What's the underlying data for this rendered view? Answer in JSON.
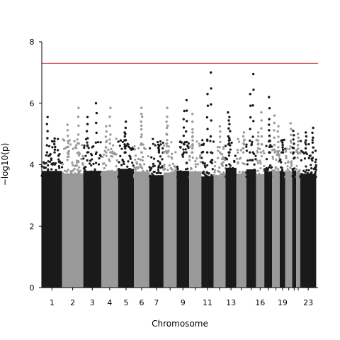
{
  "chart_data": {
    "type": "scatter",
    "subtype": "manhattan",
    "title": "",
    "xlabel": "Chromosome",
    "ylabel": "−log10(p)",
    "ylim": [
      0,
      8
    ],
    "y_ticks": [
      0,
      2,
      4,
      6,
      8
    ],
    "x_tick_labels": [
      "1",
      "2",
      "3",
      "4",
      "5",
      "6",
      "7",
      "9",
      "11",
      "13",
      "16",
      "19",
      "23"
    ],
    "chromosomes": [
      {
        "chr": "1",
        "start": 0.0,
        "end": 8.8,
        "color": "#1a1a1a"
      },
      {
        "chr": "2",
        "start": 8.8,
        "end": 18.0,
        "color": "#999999"
      },
      {
        "chr": "3",
        "start": 18.0,
        "end": 25.8,
        "color": "#1a1a1a"
      },
      {
        "chr": "4",
        "start": 25.8,
        "end": 33.1,
        "color": "#999999"
      },
      {
        "chr": "5",
        "start": 33.1,
        "end": 40.0,
        "color": "#1a1a1a"
      },
      {
        "chr": "6",
        "start": 40.0,
        "end": 46.6,
        "color": "#999999"
      },
      {
        "chr": "7",
        "start": 46.6,
        "end": 52.8,
        "color": "#1a1a1a"
      },
      {
        "chr": "8",
        "start": 52.8,
        "end": 58.5,
        "color": "#999999"
      },
      {
        "chr": "9",
        "start": 58.5,
        "end": 63.9,
        "color": "#1a1a1a"
      },
      {
        "chr": "10",
        "start": 63.9,
        "end": 69.2,
        "color": "#999999"
      },
      {
        "chr": "11",
        "start": 69.2,
        "end": 74.5,
        "color": "#1a1a1a"
      },
      {
        "chr": "12",
        "start": 74.5,
        "end": 79.7,
        "color": "#999999"
      },
      {
        "chr": "13",
        "start": 79.7,
        "end": 84.4,
        "color": "#1a1a1a"
      },
      {
        "chr": "14",
        "start": 84.4,
        "end": 88.7,
        "color": "#999999"
      },
      {
        "chr": "15",
        "start": 88.7,
        "end": 92.9,
        "color": "#1a1a1a"
      },
      {
        "chr": "16",
        "start": 92.9,
        "end": 96.5,
        "color": "#999999"
      },
      {
        "chr": "17",
        "start": 96.5,
        "end": 99.9,
        "color": "#1a1a1a"
      },
      {
        "chr": "18",
        "start": 99.9,
        "end": 103.2,
        "color": "#999999"
      },
      {
        "chr": "19",
        "start": 103.2,
        "end": 105.6,
        "color": "#1a1a1a"
      },
      {
        "chr": "20",
        "start": 105.6,
        "end": 108.6,
        "color": "#999999"
      },
      {
        "chr": "21",
        "start": 108.6,
        "end": 110.3,
        "color": "#1a1a1a"
      },
      {
        "chr": "22",
        "start": 110.3,
        "end": 112.1,
        "color": "#999999"
      },
      {
        "chr": "23",
        "start": 112.1,
        "end": 119.0,
        "color": "#1a1a1a"
      }
    ],
    "peaks": [
      {
        "chr": "1",
        "y": 5.55
      },
      {
        "chr": "1",
        "y": 4.85
      },
      {
        "chr": "2",
        "y": 5.85
      },
      {
        "chr": "2",
        "y": 5.3
      },
      {
        "chr": "3",
        "y": 6.0
      },
      {
        "chr": "3",
        "y": 5.55
      },
      {
        "chr": "4",
        "y": 5.85
      },
      {
        "chr": "4",
        "y": 5.25
      },
      {
        "chr": "5",
        "y": 5.4
      },
      {
        "chr": "5",
        "y": 5.05
      },
      {
        "chr": "6",
        "y": 5.85
      },
      {
        "chr": "6",
        "y": 5.65
      },
      {
        "chr": "7",
        "y": 4.65
      },
      {
        "chr": "8",
        "y": 5.85
      },
      {
        "chr": "8",
        "y": 5.4
      },
      {
        "chr": "9",
        "y": 6.1
      },
      {
        "chr": "9",
        "y": 5.75
      },
      {
        "chr": "10",
        "y": 5.65
      },
      {
        "chr": "10",
        "y": 5.05
      },
      {
        "chr": "11",
        "y": 7.0
      },
      {
        "chr": "11",
        "y": 6.3
      },
      {
        "chr": "12",
        "y": 5.25
      },
      {
        "chr": "13",
        "y": 5.7
      },
      {
        "chr": "13",
        "y": 5.55
      },
      {
        "chr": "14",
        "y": 5.05
      },
      {
        "chr": "15",
        "y": 6.95
      },
      {
        "chr": "15",
        "y": 6.3
      },
      {
        "chr": "16",
        "y": 5.7
      },
      {
        "chr": "16",
        "y": 5.05
      },
      {
        "chr": "17",
        "y": 6.2
      },
      {
        "chr": "17",
        "y": 5.3
      },
      {
        "chr": "18",
        "y": 5.6
      },
      {
        "chr": "18",
        "y": 5.25
      },
      {
        "chr": "19",
        "y": 4.8
      },
      {
        "chr": "20",
        "y": 5.35
      },
      {
        "chr": "21",
        "y": 5.1
      },
      {
        "chr": "22",
        "y": 5.0
      },
      {
        "chr": "23",
        "y": 5.2
      },
      {
        "chr": "23",
        "y": 5.05
      }
    ],
    "threshold": {
      "y": 7.3,
      "color": "#d62728"
    },
    "grid": false,
    "legend": "none"
  }
}
